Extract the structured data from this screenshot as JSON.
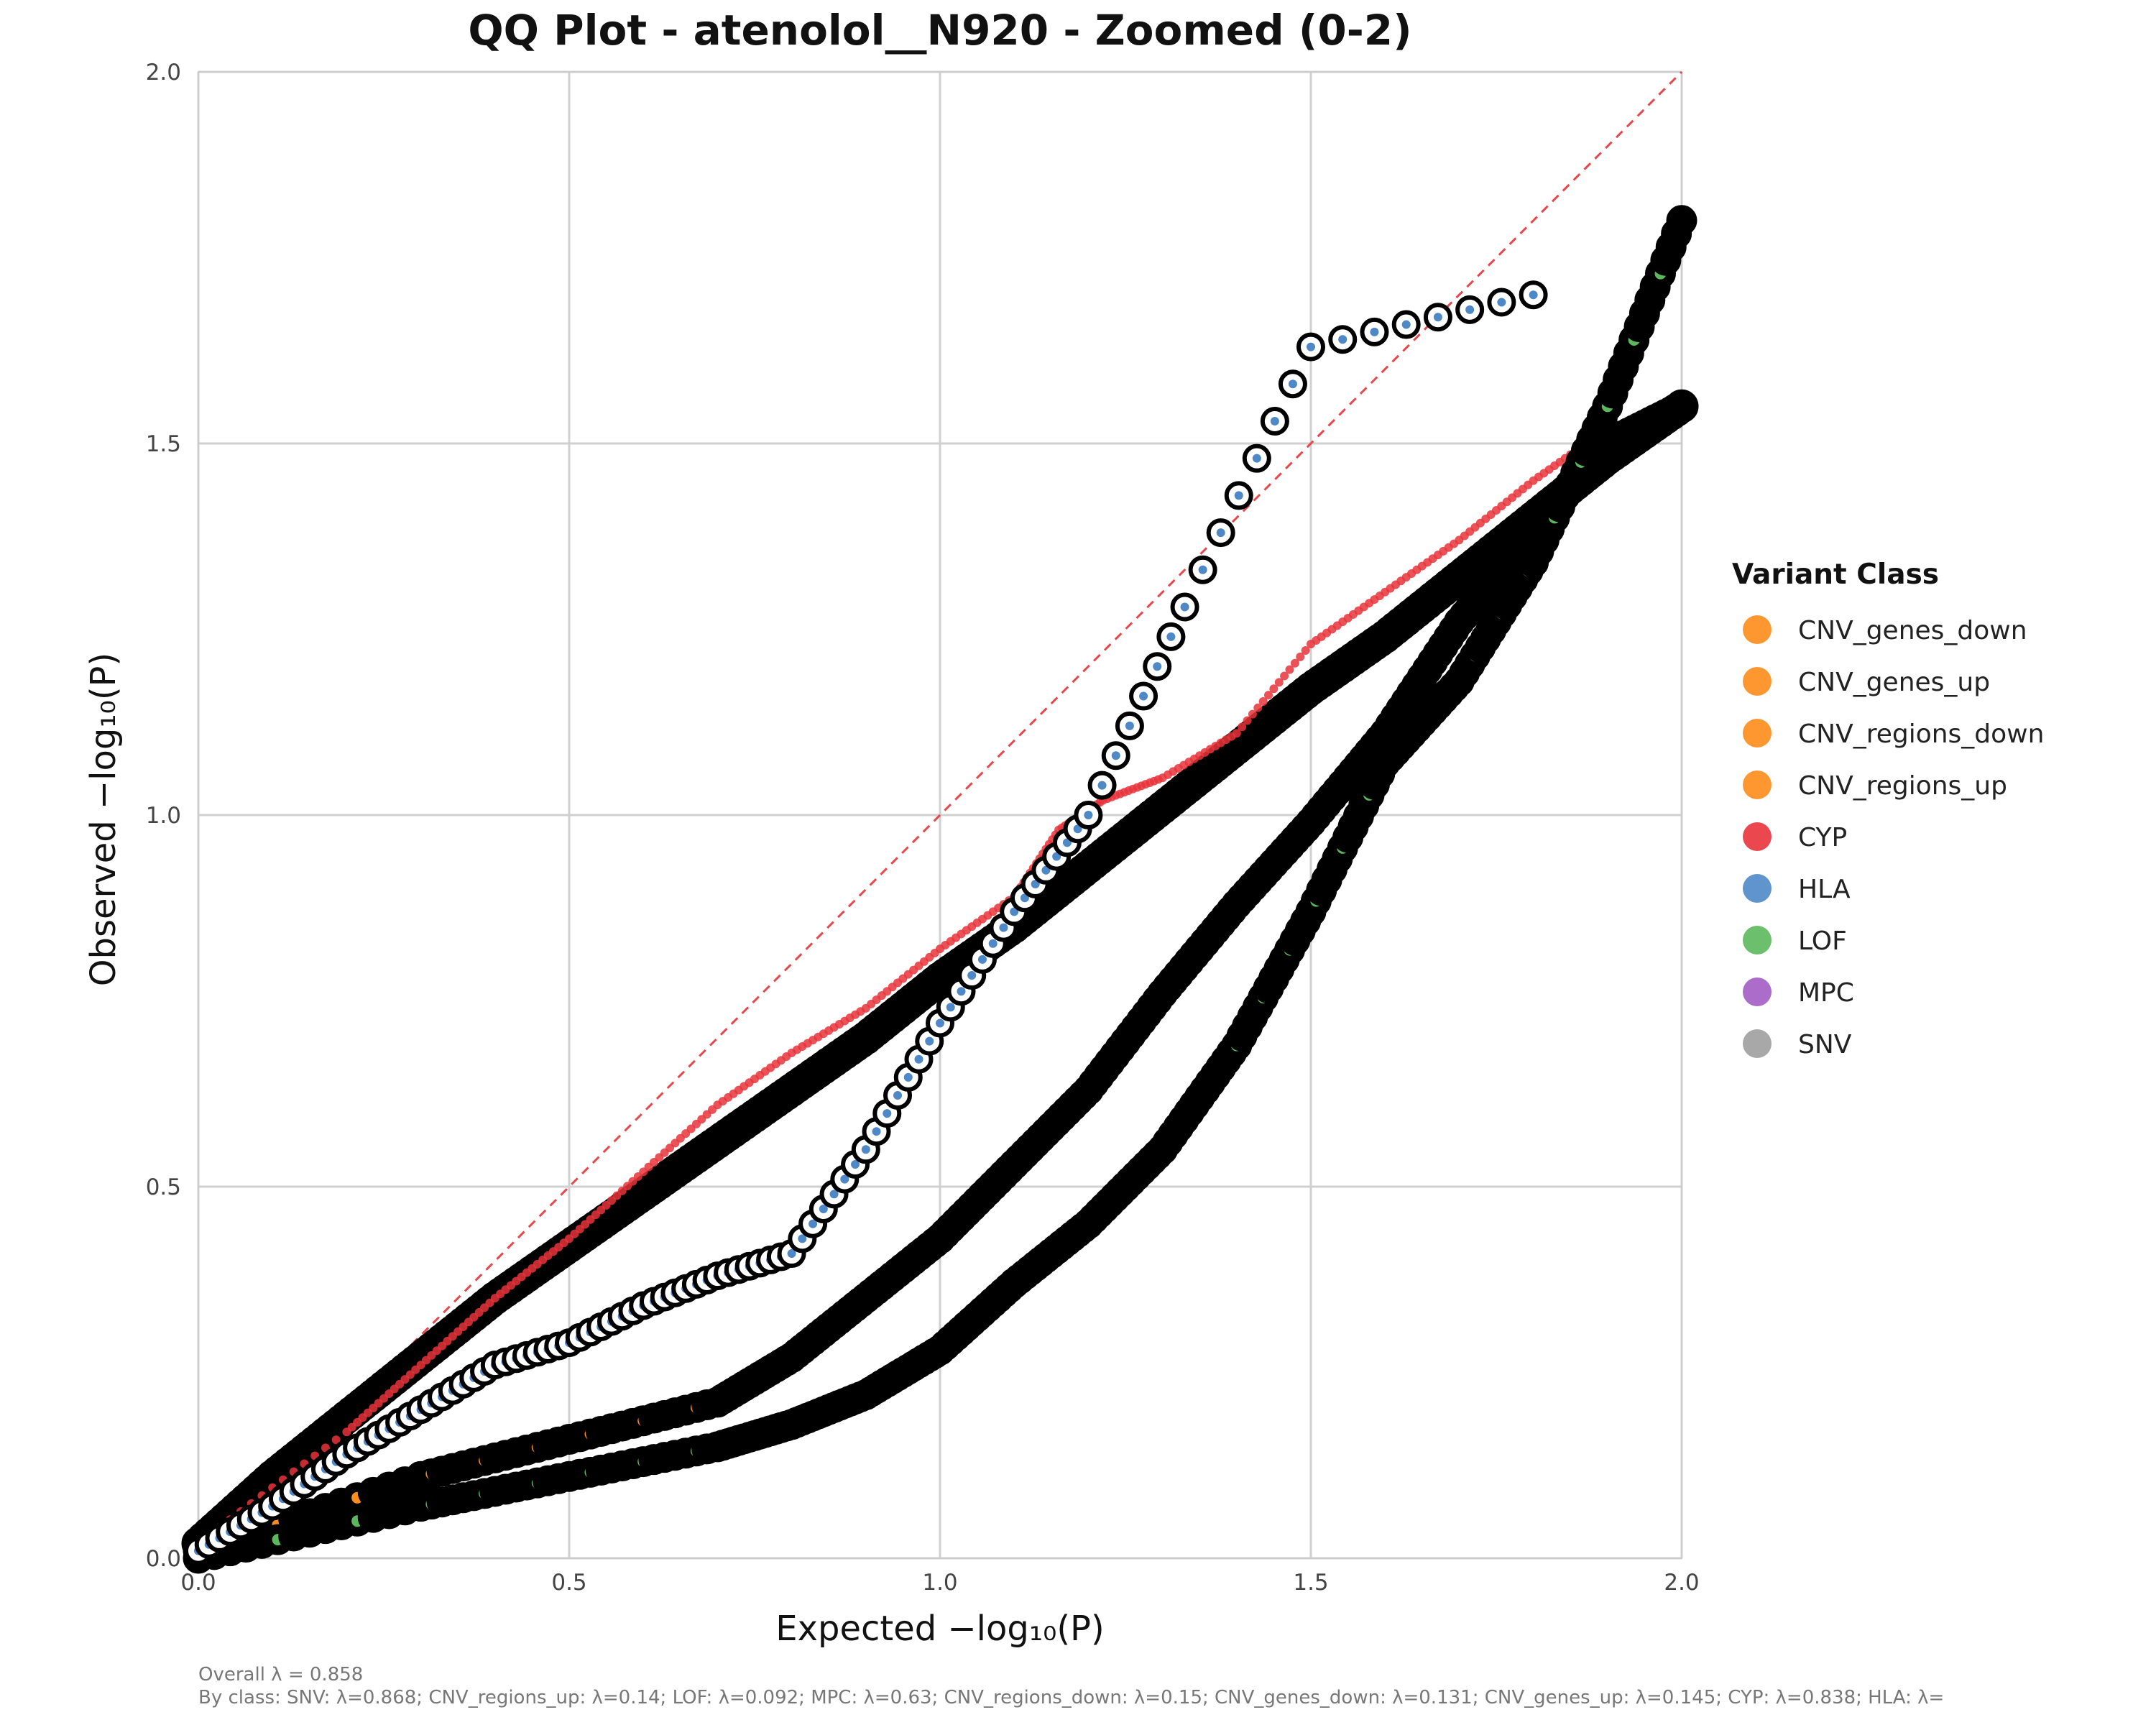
{
  "chart_data": {
    "type": "scatter",
    "title": "QQ Plot - atenolol__N920 - Zoomed (0-2)",
    "xlabel": "Expected −log₁₀(P)",
    "ylabel": "Observed −log₁₀(P)",
    "xlim": [
      0,
      2
    ],
    "ylim": [
      0,
      2
    ],
    "xticks": [
      "0.0",
      "0.5",
      "1.0",
      "1.5",
      "2.0"
    ],
    "yticks": [
      "0.0",
      "0.5",
      "1.0",
      "1.5",
      "2.0"
    ],
    "grid": true,
    "reference_line": {
      "style": "dashed",
      "color": "#e8474c",
      "from": [
        0,
        0
      ],
      "to": [
        2,
        2
      ]
    },
    "legend": {
      "title": "Variant Class",
      "placement": "right",
      "entries": [
        {
          "label": "CNV_genes_down",
          "color": "#ff8c1a"
        },
        {
          "label": "CNV_genes_up",
          "color": "#ff8c1a"
        },
        {
          "label": "CNV_regions_down",
          "color": "#ff8c1a"
        },
        {
          "label": "CNV_regions_up",
          "color": "#ff8c1a"
        },
        {
          "label": "CYP",
          "color": "#e8343b"
        },
        {
          "label": "HLA",
          "color": "#4f88c6"
        },
        {
          "label": "LOF",
          "color": "#5cb85c"
        },
        {
          "label": "MPC",
          "color": "#a35cc4"
        },
        {
          "label": "SNV",
          "color": "#9e9e9e"
        }
      ]
    },
    "series": [
      {
        "class": "SNV",
        "points": [
          [
            0.0,
            0.02
          ],
          [
            0.1,
            0.11
          ],
          [
            0.2,
            0.19
          ],
          [
            0.3,
            0.27
          ],
          [
            0.4,
            0.35
          ],
          [
            0.5,
            0.42
          ],
          [
            0.6,
            0.49
          ],
          [
            0.7,
            0.56
          ],
          [
            0.8,
            0.63
          ],
          [
            0.9,
            0.7
          ],
          [
            1.0,
            0.78
          ],
          [
            1.1,
            0.85
          ],
          [
            1.2,
            0.93
          ],
          [
            1.3,
            1.01
          ],
          [
            1.4,
            1.09
          ],
          [
            1.5,
            1.17
          ],
          [
            1.6,
            1.24
          ],
          [
            1.7,
            1.32
          ],
          [
            1.8,
            1.4
          ],
          [
            1.9,
            1.48
          ],
          [
            2.0,
            1.55
          ]
        ]
      },
      {
        "class": "CYP",
        "points": [
          [
            0.0,
            0.02
          ],
          [
            0.2,
            0.17
          ],
          [
            0.3,
            0.26
          ],
          [
            0.4,
            0.35
          ],
          [
            0.5,
            0.43
          ],
          [
            0.6,
            0.52
          ],
          [
            0.7,
            0.61
          ],
          [
            0.8,
            0.68
          ],
          [
            0.9,
            0.74
          ],
          [
            1.0,
            0.82
          ],
          [
            1.1,
            0.89
          ],
          [
            1.16,
            0.98
          ],
          [
            1.22,
            1.02
          ],
          [
            1.3,
            1.05
          ],
          [
            1.4,
            1.11
          ],
          [
            1.5,
            1.23
          ],
          [
            1.6,
            1.3
          ],
          [
            1.7,
            1.37
          ],
          [
            1.8,
            1.45
          ],
          [
            1.9,
            1.52
          ]
        ]
      },
      {
        "class": "CNV",
        "points": [
          [
            0.0,
            0.01
          ],
          [
            0.3,
            0.11
          ],
          [
            0.5,
            0.16
          ],
          [
            0.7,
            0.21
          ],
          [
            0.8,
            0.27
          ],
          [
            0.9,
            0.35
          ],
          [
            1.0,
            0.43
          ],
          [
            1.1,
            0.53
          ],
          [
            1.2,
            0.63
          ],
          [
            1.3,
            0.76
          ],
          [
            1.4,
            0.88
          ],
          [
            1.5,
            0.99
          ],
          [
            1.6,
            1.11
          ],
          [
            1.7,
            1.26
          ],
          [
            1.8,
            1.38
          ],
          [
            1.9,
            1.5
          ],
          [
            2.0,
            1.55
          ]
        ]
      },
      {
        "class": "LOF",
        "points": [
          [
            0.0,
            0.0
          ],
          [
            0.3,
            0.07
          ],
          [
            0.5,
            0.11
          ],
          [
            0.7,
            0.15
          ],
          [
            0.8,
            0.18
          ],
          [
            0.9,
            0.22
          ],
          [
            1.0,
            0.28
          ],
          [
            1.1,
            0.37
          ],
          [
            1.2,
            0.45
          ],
          [
            1.3,
            0.55
          ],
          [
            1.4,
            0.69
          ],
          [
            1.5,
            0.87
          ],
          [
            1.6,
            1.07
          ],
          [
            1.7,
            1.18
          ],
          [
            1.8,
            1.34
          ],
          [
            1.9,
            1.55
          ],
          [
            2.0,
            1.8
          ]
        ]
      },
      {
        "class": "HLA",
        "points": [
          [
            0.0,
            0.01
          ],
          [
            0.1,
            0.07
          ],
          [
            0.2,
            0.14
          ],
          [
            0.3,
            0.2
          ],
          [
            0.4,
            0.26
          ],
          [
            0.5,
            0.29
          ],
          [
            0.6,
            0.34
          ],
          [
            0.7,
            0.38
          ],
          [
            0.8,
            0.41
          ],
          [
            0.9,
            0.55
          ],
          [
            1.0,
            0.72
          ],
          [
            1.1,
            0.87
          ],
          [
            1.2,
            1.0
          ],
          [
            1.33,
            1.28
          ],
          [
            1.5,
            1.63
          ],
          [
            1.8,
            1.7
          ]
        ]
      }
    ]
  },
  "footnote": {
    "overall": "Overall λ = 0.858",
    "by_class": "By class: SNV: λ=0.868; CNV_regions_up: λ=0.14; LOF: λ=0.092; MPC: λ=0.63; CNV_regions_down: λ=0.15; CNV_genes_down: λ=0.131; CNV_genes_up: λ=0.145; CYP: λ=0.838; HLA: λ="
  }
}
